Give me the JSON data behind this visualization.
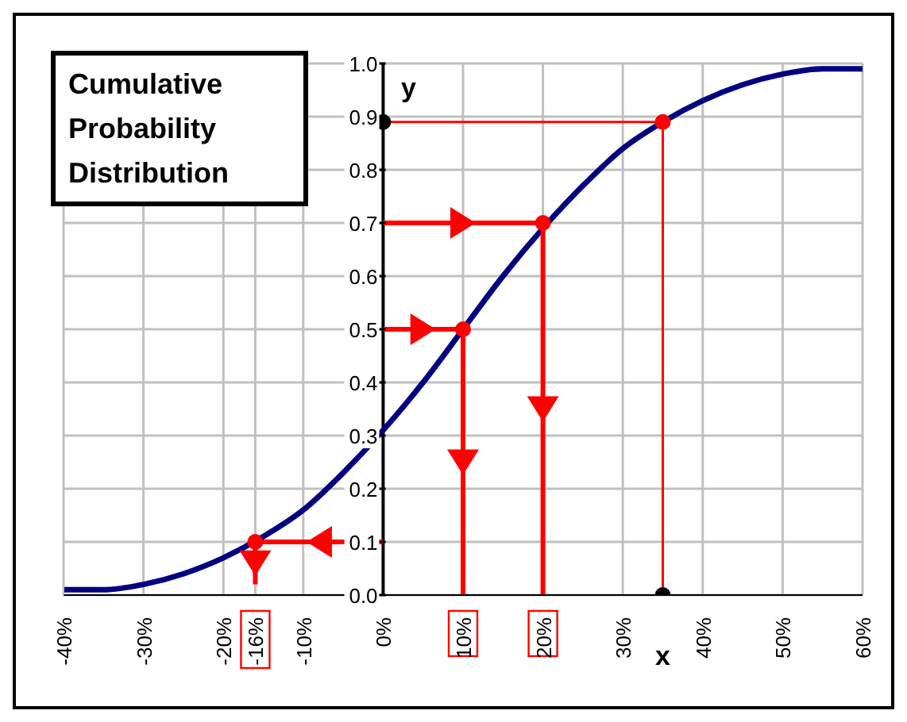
{
  "chart_data": {
    "type": "line",
    "title": "Cumulative Probability Distribution",
    "x": [
      -40,
      -35,
      -30,
      -25,
      -20,
      -15,
      -10,
      -5,
      0,
      5,
      10,
      15,
      20,
      25,
      30,
      35,
      40,
      45,
      50,
      55,
      60
    ],
    "series": [
      {
        "color": "#000080",
        "values": [
          0.01,
          0.01,
          0.02,
          0.04,
          0.07,
          0.11,
          0.16,
          0.23,
          0.31,
          0.4,
          0.5,
          0.6,
          0.69,
          0.77,
          0.84,
          0.89,
          0.93,
          0.96,
          0.98,
          0.99,
          0.99
        ]
      },
      {
        "type": "line",
        "color": "#ff0000",
        "x": [
          0,
          10,
          10
        ],
        "values": [
          0.5,
          0.5,
          0
        ]
      },
      {
        "type": "line",
        "color": "#ff0000",
        "x": [
          0,
          20,
          20
        ],
        "values": [
          0.7,
          0.7,
          0
        ]
      },
      {
        "type": "line",
        "color": "#ff0000",
        "x": [
          0,
          -16,
          -16
        ],
        "values": [
          0.1,
          0.1,
          0.02
        ]
      },
      {
        "type": "line",
        "color": "#ff0000",
        "x": [
          0,
          35,
          35
        ],
        "values": [
          0.89,
          0.89,
          0
        ]
      },
      {
        "type": "scatter",
        "color": "#ff0000",
        "x": [
          10,
          20,
          -16,
          35
        ],
        "values": [
          0.5,
          0.7,
          0.1,
          0.89
        ],
        "marker": "circle"
      },
      {
        "type": "scatter",
        "color": "#000000",
        "x": [
          0,
          35
        ],
        "values": [
          0.89,
          0
        ],
        "marker": "circle"
      }
    ],
    "xlim": [
      -40,
      60
    ],
    "xticks": [
      {
        "value": -40,
        "label": "-40%"
      },
      {
        "value": -30,
        "label": "-30%"
      },
      {
        "value": -20,
        "label": "-20%"
      },
      {
        "value": -16,
        "label": "-16%"
      },
      {
        "value": -10,
        "label": "-10%"
      },
      {
        "value": 0,
        "label": "0%"
      },
      {
        "value": 10,
        "label": "10%"
      },
      {
        "value": 20,
        "label": "20%"
      },
      {
        "value": 30,
        "label": "30%"
      },
      {
        "value": 40,
        "label": "40%"
      },
      {
        "value": 50,
        "label": "50%"
      },
      {
        "value": 60,
        "label": "60%"
      }
    ],
    "ylim": [
      0,
      1
    ],
    "yticks": [
      {
        "value": 0,
        "label": "0.0"
      },
      0.1,
      0.2,
      0.3,
      0.4,
      0.5,
      0.6,
      0.7,
      0.8,
      0.9,
      {
        "value": 1,
        "label": "1.0"
      }
    ],
    "annotations": [
      {
        "text": "y",
        "x": 0,
        "y": 0.89
      },
      {
        "text": "x",
        "x": 35,
        "y": 0
      }
    ],
    "grid": true
  }
}
